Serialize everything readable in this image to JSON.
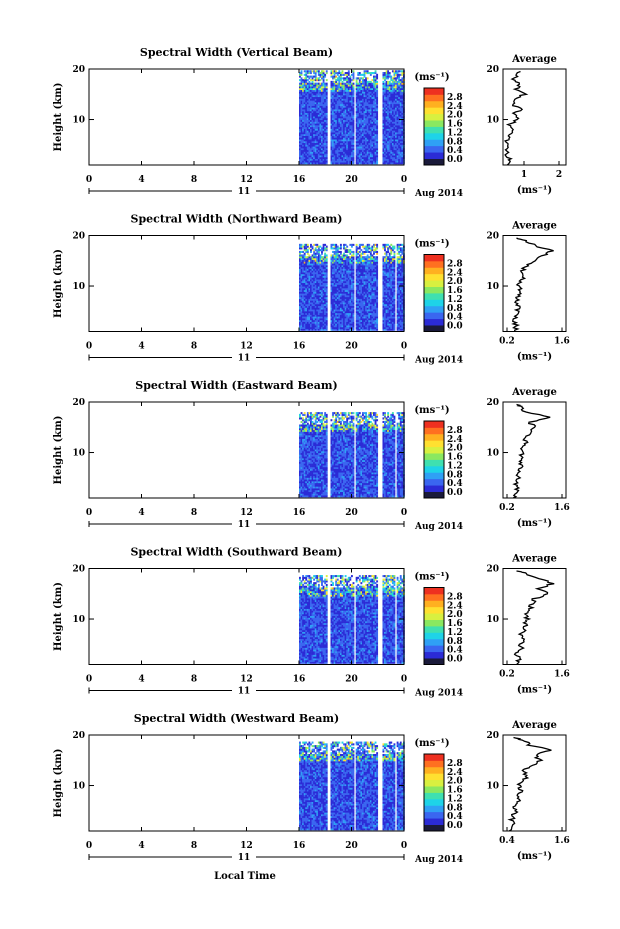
{
  "figure": {
    "xlabel_bottom": "Local Time",
    "date_label": "Aug 2014",
    "day_label": "11",
    "colorbar_unit": "(ms⁻¹)",
    "colorbar_ticks": [
      "2.8",
      "2.4",
      "2.0",
      "1.6",
      "1.2",
      "0.8",
      "0.4",
      "0.0"
    ],
    "avg_title": "Average",
    "avg_unit": "(ms⁻¹)",
    "ylabel": "Height (km)",
    "colors": [
      "#1a1a3a",
      "#2b2bd6",
      "#3a66f0",
      "#2fa0f5",
      "#1ed3e8",
      "#3fe0b0",
      "#8ae860",
      "#d8f040",
      "#ffe030",
      "#ffb020",
      "#ff7020",
      "#ee3020"
    ]
  },
  "chart_data": [
    {
      "type": "heatmap",
      "title": "Spectral Width (Vertical Beam)",
      "x_ticks": [
        "0",
        "4",
        "8",
        "12",
        "16",
        "20",
        "0"
      ],
      "y_ticks": [
        "20",
        "10"
      ],
      "xlim": [
        0,
        24
      ],
      "ylim": [
        1,
        20
      ],
      "data_time_range": [
        16,
        24
      ],
      "gaps_hours": [
        [
          18.1,
          18.3
        ],
        [
          20.1,
          20.3
        ],
        [
          22.0,
          22.3
        ]
      ],
      "mean_level_index": 2,
      "top_km": 19.5,
      "avg_profile": {
        "x_ticks": [
          "1",
          "2"
        ],
        "xlim": [
          0.4,
          2.2
        ],
        "ylim": [
          1,
          20
        ],
        "heights": [
          1,
          2,
          3,
          4,
          5,
          6,
          7,
          8,
          9,
          10,
          11,
          12,
          13,
          14,
          15,
          16,
          17,
          18,
          19,
          19.5
        ],
        "values": [
          0.5,
          0.6,
          0.5,
          0.5,
          0.6,
          0.5,
          0.6,
          0.7,
          0.6,
          0.8,
          0.7,
          0.9,
          0.7,
          0.8,
          1.0,
          0.8,
          0.9,
          0.7,
          0.8,
          0.9
        ]
      }
    },
    {
      "type": "heatmap",
      "title": "Spectral Width (Northward Beam)",
      "x_ticks": [
        "0",
        "4",
        "8",
        "12",
        "16",
        "20",
        "0"
      ],
      "y_ticks": [
        "20",
        "10"
      ],
      "xlim": [
        0,
        24
      ],
      "ylim": [
        1,
        20
      ],
      "data_time_range": [
        16,
        24
      ],
      "gaps_hours": [
        [
          18.1,
          18.3
        ],
        [
          20.1,
          20.3
        ],
        [
          22.0,
          22.3
        ],
        [
          23.3,
          23.4
        ]
      ],
      "mean_level_index": 2,
      "top_km": 18.2,
      "avg_profile": {
        "x_ticks": [
          "0.2",
          "1.6"
        ],
        "xlim": [
          0.2,
          1.6
        ],
        "ylim": [
          1,
          20
        ],
        "heights": [
          1,
          2,
          3,
          4,
          5,
          6,
          7,
          8,
          9,
          10,
          11,
          12,
          13,
          14,
          15,
          16,
          17,
          18,
          19,
          19.5
        ],
        "values": [
          0.45,
          0.5,
          0.45,
          0.5,
          0.5,
          0.55,
          0.5,
          0.55,
          0.6,
          0.55,
          0.6,
          0.65,
          0.6,
          0.75,
          0.9,
          1.1,
          1.3,
          0.9,
          0.7,
          0.5
        ]
      }
    },
    {
      "type": "heatmap",
      "title": "Spectral Width (Eastward Beam)",
      "x_ticks": [
        "0",
        "4",
        "8",
        "12",
        "16",
        "20",
        "0"
      ],
      "y_ticks": [
        "20",
        "10"
      ],
      "xlim": [
        0,
        24
      ],
      "ylim": [
        1,
        20
      ],
      "data_time_range": [
        16,
        24
      ],
      "gaps_hours": [
        [
          18.1,
          18.3
        ],
        [
          20.1,
          20.3
        ],
        [
          22.0,
          22.3
        ],
        [
          23.3,
          23.4
        ]
      ],
      "mean_level_index": 2,
      "top_km": 17.8,
      "avg_profile": {
        "x_ticks": [
          "0.2",
          "1.6"
        ],
        "xlim": [
          0.2,
          1.6
        ],
        "ylim": [
          1,
          20
        ],
        "heights": [
          1,
          2,
          3,
          4,
          5,
          6,
          7,
          8,
          9,
          10,
          11,
          12,
          13,
          14,
          15,
          16,
          17,
          18,
          19,
          19.5
        ],
        "values": [
          0.45,
          0.5,
          0.5,
          0.5,
          0.55,
          0.55,
          0.6,
          0.6,
          0.65,
          0.6,
          0.65,
          0.7,
          0.7,
          0.8,
          0.9,
          0.8,
          1.3,
          0.7,
          0.6,
          0.5
        ]
      }
    },
    {
      "type": "heatmap",
      "title": "Spectral Width (Southward Beam)",
      "x_ticks": [
        "0",
        "4",
        "8",
        "12",
        "16",
        "20",
        "0"
      ],
      "y_ticks": [
        "20",
        "10"
      ],
      "xlim": [
        0,
        24
      ],
      "ylim": [
        1,
        20
      ],
      "data_time_range": [
        16,
        24
      ],
      "gaps_hours": [
        [
          18.1,
          18.3
        ],
        [
          20.1,
          20.3
        ],
        [
          22.0,
          22.3
        ],
        [
          23.3,
          23.4
        ]
      ],
      "mean_level_index": 2,
      "top_km": 18.4,
      "avg_profile": {
        "x_ticks": [
          "0.2",
          "1.6"
        ],
        "xlim": [
          0.2,
          1.6
        ],
        "ylim": [
          1,
          20
        ],
        "heights": [
          1,
          2,
          3,
          4,
          5,
          6,
          7,
          8,
          9,
          10,
          11,
          12,
          13,
          14,
          15,
          16,
          17,
          18,
          19,
          19.5
        ],
        "values": [
          0.5,
          0.55,
          0.5,
          0.6,
          0.6,
          0.65,
          0.6,
          0.7,
          0.7,
          0.75,
          0.7,
          0.8,
          0.85,
          0.9,
          1.2,
          1.0,
          1.3,
          1.0,
          0.7,
          0.5
        ]
      }
    },
    {
      "type": "heatmap",
      "title": "Spectral Width (Westward Beam)",
      "x_ticks": [
        "0",
        "4",
        "8",
        "12",
        "16",
        "20",
        "0"
      ],
      "y_ticks": [
        "20",
        "10"
      ],
      "xlim": [
        0,
        24
      ],
      "ylim": [
        1,
        20
      ],
      "data_time_range": [
        16,
        24
      ],
      "gaps_hours": [
        [
          18.1,
          18.3
        ],
        [
          20.1,
          20.3
        ],
        [
          22.0,
          22.3
        ],
        [
          23.3,
          23.4
        ]
      ],
      "mean_level_index": 2,
      "top_km": 18.6,
      "avg_profile": {
        "x_ticks": [
          "0.4",
          "1.6"
        ],
        "xlim": [
          0.4,
          1.6
        ],
        "ylim": [
          1,
          20
        ],
        "heights": [
          1,
          2,
          3,
          4,
          5,
          6,
          7,
          8,
          9,
          10,
          11,
          12,
          13,
          14,
          15,
          16,
          17,
          18,
          19,
          19.5
        ],
        "values": [
          0.55,
          0.6,
          0.55,
          0.6,
          0.65,
          0.6,
          0.7,
          0.65,
          0.75,
          0.7,
          0.8,
          0.85,
          0.8,
          0.95,
          1.1,
          1.0,
          1.3,
          0.9,
          0.8,
          0.6
        ]
      }
    }
  ]
}
